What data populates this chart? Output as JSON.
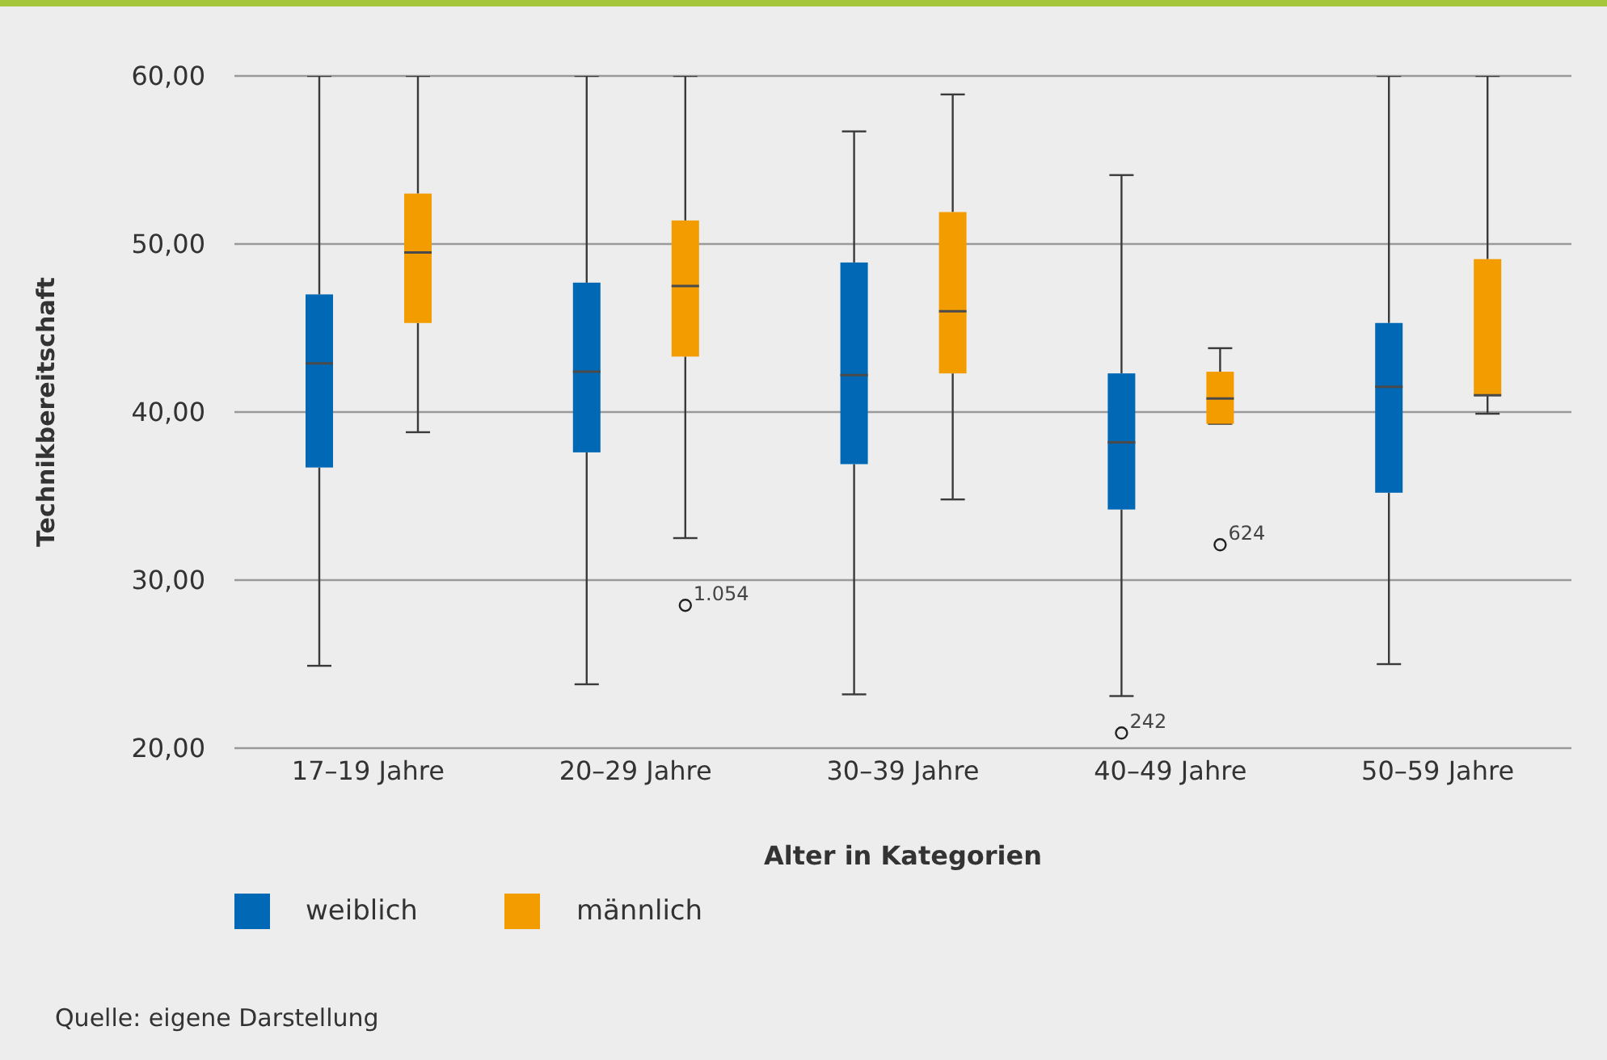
{
  "chart_data": {
    "type": "box",
    "xlabel": "Alter in Kategorien",
    "ylabel": "Technikbereitschaft",
    "categories": [
      "17–19 Jahre",
      "20–29 Jahre",
      "30–39 Jahre",
      "40–49 Jahre",
      "50–59 Jahre"
    ],
    "series": [
      {
        "name": "weiblich",
        "color": "#0068b4",
        "boxes": [
          {
            "low": 24.9,
            "q1": 36.7,
            "median": 42.9,
            "q3": 47.0,
            "high": 60
          },
          {
            "low": 23.8,
            "q1": 37.6,
            "median": 42.4,
            "q3": 47.7,
            "high": 60
          },
          {
            "low": 23.2,
            "q1": 36.9,
            "median": 42.2,
            "q3": 48.9,
            "high": 56.7
          },
          {
            "low": 23.1,
            "q1": 34.2,
            "median": 38.2,
            "q3": 42.3,
            "high": 54.1,
            "outliers": [
              20.9
            ]
          },
          {
            "low": 25.0,
            "q1": 35.2,
            "median": 41.5,
            "q3": 45.3,
            "high": 60
          }
        ]
      },
      {
        "name": "männlich",
        "color": "#f39c00",
        "boxes": [
          {
            "low": 38.8,
            "q1": 45.3,
            "median": 49.5,
            "q3": 53.0,
            "high": 60
          },
          {
            "low": 32.5,
            "q1": 43.3,
            "median": 47.5,
            "q3": 51.4,
            "high": 60,
            "outliers": [
              28.5
            ]
          },
          {
            "low": 34.8,
            "q1": 42.3,
            "median": 46.0,
            "q3": 51.9,
            "high": 58.9
          },
          {
            "low": 39.3,
            "q1": 39.3,
            "median": 40.8,
            "q3": 42.4,
            "high": 43.8,
            "outliers": [
              32.1
            ]
          },
          {
            "low": 39.9,
            "q1": 41.0,
            "median": 41.0,
            "q3": 49.1,
            "high": 60
          }
        ]
      }
    ],
    "ylim": [
      20,
      60
    ],
    "yticks": [
      {
        "value": 20,
        "label": "20,00"
      },
      {
        "value": 30,
        "label": "30,00"
      },
      {
        "value": 40,
        "label": "40,00"
      },
      {
        "value": 50,
        "label": "50,00"
      },
      {
        "value": 60,
        "label": "60,00"
      }
    ],
    "grid": "y",
    "legend": "bottom left",
    "annotations": [
      "1.054",
      "242",
      "624",
      "Quelle: eigene Darstellung"
    ]
  }
}
